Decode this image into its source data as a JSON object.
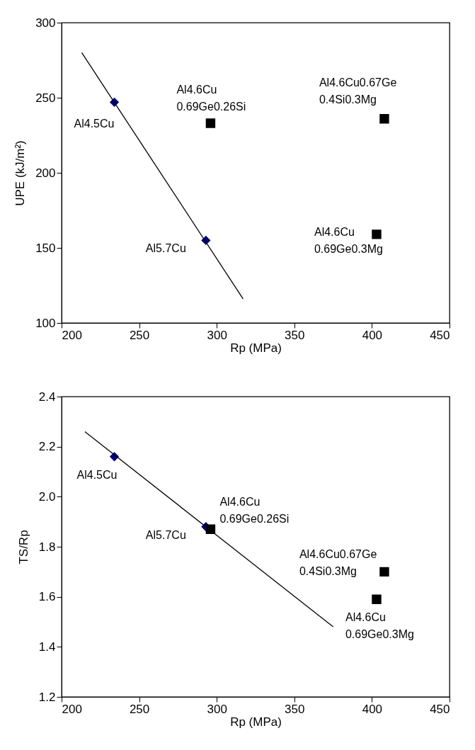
{
  "chart_data": [
    {
      "type": "scatter",
      "xlabel": "Rp (MPa)",
      "ylabel": "UPE (kJ/m²)",
      "xlim": [
        200,
        450
      ],
      "ylim": [
        100,
        300
      ],
      "xticks": [
        200,
        250,
        300,
        350,
        400,
        450
      ],
      "yticks": [
        100,
        150,
        200,
        250,
        300
      ],
      "grid": false,
      "series": [
        {
          "type": "scatter",
          "marker": "diamond",
          "color": "#000080",
          "x": [
            234,
            293
          ],
          "values": [
            247,
            155
          ]
        },
        {
          "type": "scatter",
          "marker": "square",
          "color": "#000000",
          "x": [
            296,
            408,
            403
          ],
          "values": [
            233,
            236,
            159
          ]
        },
        {
          "type": "line",
          "marker": "none",
          "color": "#000000",
          "x": [
            213,
            317
          ],
          "values": [
            280,
            116
          ]
        }
      ],
      "annotations": [
        {
          "text": "Al4.5Cu",
          "x": 234,
          "y": 247
        },
        {
          "text": "Al4.6Cu\n0.69Ge0.26Si",
          "x": 296,
          "y": 233
        },
        {
          "text": "Al4.6Cu0.67Ge\n0.4Si0.3Mg",
          "x": 408,
          "y": 236
        },
        {
          "text": "Al5.7Cu",
          "x": 293,
          "y": 155
        },
        {
          "text": "Al4.6Cu\n0.69Ge0.3Mg",
          "x": 403,
          "y": 159
        }
      ]
    },
    {
      "type": "scatter",
      "xlabel": "Rp (MPa)",
      "ylabel": "TS/Rp",
      "xlim": [
        200,
        450
      ],
      "ylim": [
        1.2,
        2.4
      ],
      "xticks": [
        200,
        250,
        300,
        350,
        400,
        450
      ],
      "yticks": [
        1.2,
        1.4,
        1.6,
        1.8,
        {
          "value": 2,
          "label": "2.0"
        },
        2.2,
        2.4
      ],
      "grid": false,
      "series": [
        {
          "type": "scatter",
          "marker": "diamond",
          "color": "#000080",
          "x": [
            234,
            293
          ],
          "values": [
            2.16,
            1.88
          ]
        },
        {
          "type": "scatter",
          "marker": "square",
          "color": "#000000",
          "x": [
            296,
            408,
            403
          ],
          "values": [
            1.87,
            1.7,
            1.59
          ]
        },
        {
          "type": "line",
          "marker": "none",
          "color": "#000000",
          "x": [
            215,
            375
          ],
          "values": [
            2.26,
            1.48
          ]
        }
      ],
      "annotations": [
        {
          "text": "Al4.5Cu",
          "x": 234,
          "y": 2.16
        },
        {
          "text": "Al4.6Cu\n0.69Ge0.26Si",
          "x": 296,
          "y": 1.87
        },
        {
          "text": "Al5.7Cu",
          "x": 293,
          "y": 1.88
        },
        {
          "text": "Al4.6Cu0.67Ge\n0.4Si0.3Mg",
          "x": 408,
          "y": 1.7
        },
        {
          "text": "Al4.6Cu\n0.69Ge0.3Mg",
          "x": 403,
          "y": 1.59
        }
      ]
    }
  ]
}
